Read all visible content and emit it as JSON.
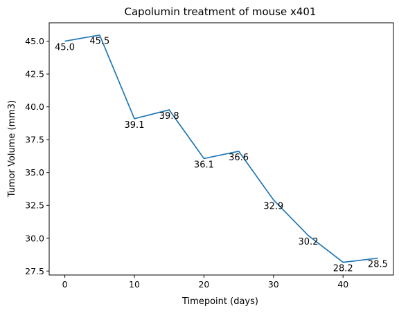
{
  "chart_data": {
    "type": "line",
    "title": "Capolumin treatment of mouse x401",
    "xlabel": "Timepoint (days)",
    "ylabel": "Tumor Volume (mm3)",
    "xlim": [
      -2.25,
      47.25
    ],
    "ylim": [
      27.2,
      46.4
    ],
    "xticks": [
      0,
      10,
      20,
      30,
      40
    ],
    "yticks": [
      27.5,
      30.0,
      32.5,
      35.0,
      37.5,
      40.0,
      42.5,
      45.0
    ],
    "ytick_labels": [
      "27.5",
      "30.0",
      "32.5",
      "35.0",
      "37.5",
      "40.0",
      "42.5",
      "45.0"
    ],
    "line_color": "#1f77b4",
    "series": [
      {
        "name": "Tumor Volume",
        "x": [
          0,
          5,
          10,
          15,
          20,
          25,
          30,
          35,
          40,
          45
        ],
        "y": [
          45.0,
          45.47,
          39.1,
          39.77,
          36.07,
          36.62,
          32.92,
          30.21,
          28.17,
          28.48
        ]
      }
    ],
    "annotations": [
      {
        "x": 0,
        "label": "45.0"
      },
      {
        "x": 10,
        "label": "39.1"
      },
      {
        "x": 20,
        "label": "36.1"
      },
      {
        "x": 30,
        "label": "32.9"
      },
      {
        "x": 40,
        "label": "28.2"
      },
      {
        "x": 5,
        "label": "45.5"
      },
      {
        "x": 15,
        "label": "39.8"
      },
      {
        "x": 25,
        "label": "36.6"
      },
      {
        "x": 35,
        "label": "30.2"
      },
      {
        "x": 45,
        "label": "28.5"
      }
    ]
  }
}
